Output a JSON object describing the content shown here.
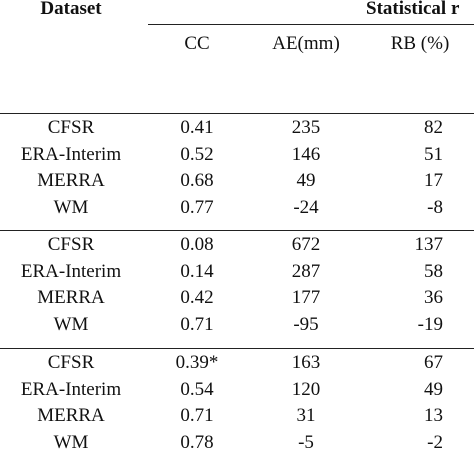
{
  "table": {
    "header": {
      "dataset_label": "Dataset",
      "group_label": "Statistical r",
      "columns": [
        "CC",
        "AE(mm)",
        "RB (%)"
      ]
    },
    "groups": [
      {
        "rows": [
          {
            "dataset": "CFSR",
            "cc": "0.41",
            "ae": "235",
            "rb": "82"
          },
          {
            "dataset": "ERA-Interim",
            "cc": "0.52",
            "ae": "146",
            "rb": "51"
          },
          {
            "dataset": "MERRA",
            "cc": "0.68",
            "ae": "49",
            "rb": "17"
          },
          {
            "dataset": "WM",
            "cc": "0.77",
            "ae": "-24",
            "rb": "-8"
          }
        ]
      },
      {
        "rows": [
          {
            "dataset": "CFSR",
            "cc": "0.08",
            "ae": "672",
            "rb": "137"
          },
          {
            "dataset": "ERA-Interim",
            "cc": "0.14",
            "ae": "287",
            "rb": "58"
          },
          {
            "dataset": "MERRA",
            "cc": "0.42",
            "ae": "177",
            "rb": "36"
          },
          {
            "dataset": "WM",
            "cc": "0.71",
            "ae": "-95",
            "rb": "-19"
          }
        ]
      },
      {
        "rows": [
          {
            "dataset": "CFSR",
            "cc": "0.39*",
            "ae": "163",
            "rb": "67"
          },
          {
            "dataset": "ERA-Interim",
            "cc": "0.54",
            "ae": "120",
            "rb": "49"
          },
          {
            "dataset": "MERRA",
            "cc": "0.71",
            "ae": "31",
            "rb": "13"
          },
          {
            "dataset": "WM",
            "cc": "0.78",
            "ae": "-5",
            "rb": "-2"
          }
        ]
      }
    ]
  }
}
